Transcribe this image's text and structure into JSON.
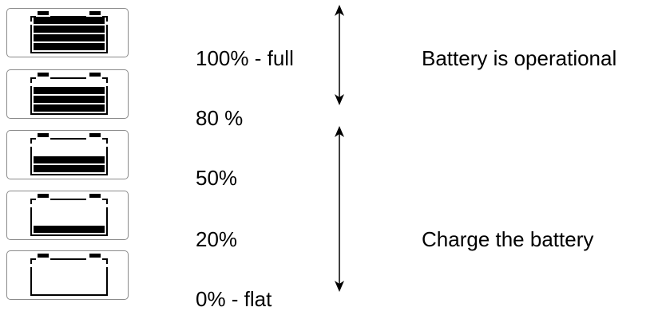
{
  "levels": [
    {
      "label": "100% - full",
      "bars": 4
    },
    {
      "label": "80 %",
      "bars": 3
    },
    {
      "label": "50%",
      "bars": 2
    },
    {
      "label": "20%",
      "bars": 1
    },
    {
      "label": "0% - flat",
      "bars": 0
    }
  ],
  "ranges": [
    {
      "text": "Battery is operational"
    },
    {
      "text": "Charge the battery"
    }
  ],
  "colors": {
    "ink": "#000000",
    "border": "#8a8a8a"
  }
}
